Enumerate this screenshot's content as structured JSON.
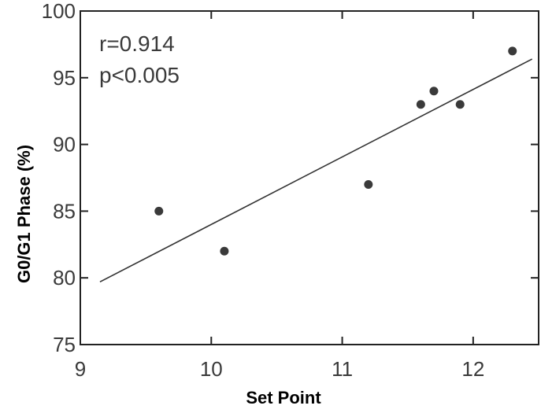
{
  "chart_data": {
    "type": "scatter",
    "title": "",
    "xlabel": "Set Point",
    "ylabel": "G0/G1 Phase (%)",
    "xlim": [
      9,
      12.5
    ],
    "ylim": [
      75,
      100
    ],
    "xticks": [
      9,
      10,
      11,
      12
    ],
    "yticks": [
      75,
      80,
      85,
      90,
      95,
      100
    ],
    "grid": false,
    "legend": "none",
    "annotations": [
      "r=0.914",
      "p<0.005"
    ],
    "points": [
      {
        "x": 9.6,
        "y": 85.0
      },
      {
        "x": 10.1,
        "y": 82.0
      },
      {
        "x": 11.2,
        "y": 87.0
      },
      {
        "x": 11.6,
        "y": 93.0
      },
      {
        "x": 11.7,
        "y": 94.0
      },
      {
        "x": 11.9,
        "y": 93.0
      },
      {
        "x": 12.3,
        "y": 97.0
      }
    ],
    "fit_line": {
      "x": [
        9.15,
        12.45
      ],
      "y": [
        79.7,
        96.4
      ]
    },
    "colors": {
      "points": "#3a3a3a",
      "line": "#333333",
      "axes": "#222222"
    }
  }
}
